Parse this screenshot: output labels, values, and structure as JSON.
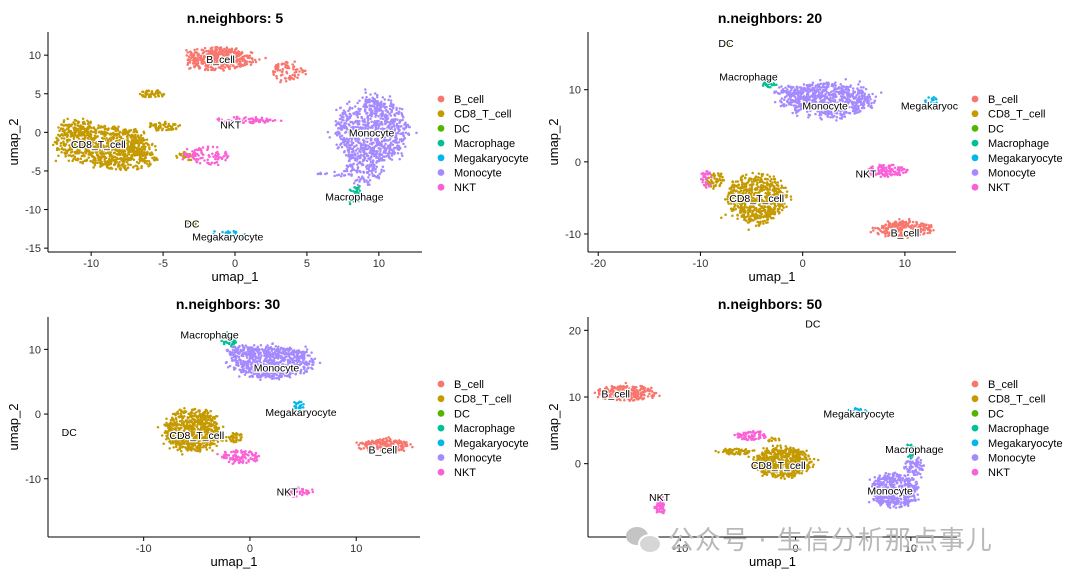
{
  "chart_data": [
    {
      "type": "scatter",
      "title": "n.neighbors: 5",
      "xlabel": "umap_1",
      "ylabel": "umap_2",
      "xlim": [
        -13,
        13
      ],
      "ylim": [
        -15.5,
        13
      ],
      "xticks": [
        -10,
        -5,
        0,
        5,
        10
      ],
      "yticks": [
        -15,
        -10,
        -5,
        0,
        5,
        10
      ],
      "legend": "right",
      "series": [
        {
          "name": "B_cell",
          "label": "B_cell",
          "label_pos": [
            -1,
            9.5
          ],
          "blobs": [
            [
              -1,
              9.5,
              2.6,
              1.5,
              1600
            ],
            [
              3.6,
              7.8,
              1.2,
              1.3,
              300
            ]
          ]
        },
        {
          "name": "CD8_T_cell",
          "label": "CD8_T_cell",
          "label_pos": [
            -9.5,
            -1.5
          ],
          "blobs": [
            [
              -9.3,
              -1.6,
              3.5,
              2.6,
              2600
            ],
            [
              -7.5,
              -3.3,
              2.2,
              1.8,
              900
            ],
            [
              -5,
              0.8,
              1.2,
              0.6,
              250
            ],
            [
              -5.8,
              5,
              1.0,
              0.5,
              200
            ],
            [
              -11,
              0.5,
              1.4,
              1.2,
              400
            ],
            [
              -3.4,
              -3.1,
              0.8,
              0.6,
              120
            ]
          ]
        },
        {
          "name": "DC",
          "label": "DC",
          "label_pos": [
            -3,
            -11.8
          ],
          "blobs": [
            [
              -3,
              -11.8,
              0.35,
              0.25,
              25
            ]
          ]
        },
        {
          "name": "Macrophage",
          "label": "Macrophage",
          "label_pos": [
            8.3,
            -8.3
          ],
          "blobs": [
            [
              8.4,
              -8.2,
              0.6,
              1.3,
              160
            ]
          ]
        },
        {
          "name": "Megakaryocyte",
          "label": "Megakaryocyte",
          "label_pos": [
            -0.5,
            -13.5
          ],
          "blobs": [
            [
              -0.5,
              -13.3,
              1.2,
              0.6,
              140
            ]
          ]
        },
        {
          "name": "Monocyte",
          "label": "Monocyte",
          "label_pos": [
            9.5,
            0
          ],
          "blobs": [
            [
              9.5,
              0.2,
              2.6,
              4.6,
              3200
            ],
            [
              9.0,
              -4.5,
              1.5,
              2.2,
              500
            ],
            [
              6.8,
              -5.5,
              1.2,
              0.4,
              60
            ]
          ]
        },
        {
          "name": "NKT",
          "label": "NKT",
          "label_pos": [
            -0.3,
            1
          ],
          "blobs": [
            [
              0.8,
              1.6,
              2.4,
              0.45,
              300
            ],
            [
              -2,
              -3,
              1.6,
              1.2,
              350
            ]
          ]
        }
      ]
    },
    {
      "type": "scatter",
      "title": "n.neighbors: 20",
      "xlabel": "umap_1",
      "ylabel": "umap_2",
      "xlim": [
        -21,
        15
      ],
      "ylim": [
        -12.5,
        18
      ],
      "xticks": [
        -20,
        -10,
        0,
        10
      ],
      "yticks": [
        -10,
        0,
        10
      ],
      "legend": "right",
      "series": [
        {
          "name": "B_cell",
          "label": "B_cell",
          "label_pos": [
            10,
            -9.8
          ],
          "blobs": [
            [
              10,
              -9.3,
              2.8,
              1.2,
              900
            ]
          ]
        },
        {
          "name": "CD8_T_cell",
          "label": "CD8_T_cell",
          "label_pos": [
            -4.5,
            -5
          ],
          "blobs": [
            [
              -4.5,
              -5.2,
              3.0,
              3.4,
              2600
            ],
            [
              -8.6,
              -2.6,
              1.0,
              1.2,
              200
            ]
          ]
        },
        {
          "name": "DC",
          "label": "DC",
          "label_pos": [
            -7.5,
            16.5
          ],
          "blobs": [
            [
              -7.5,
              16.5,
              0.4,
              0.25,
              25
            ]
          ]
        },
        {
          "name": "Macrophage",
          "label": "Macrophage",
          "label_pos": [
            -5.3,
            11.8
          ],
          "blobs": [
            [
              -3.2,
              11.2,
              0.8,
              1.2,
              150
            ]
          ]
        },
        {
          "name": "Megakaryocyte",
          "label": "Megakaryoc",
          "label_pos": [
            12.4,
            7.8
          ],
          "blobs": [
            [
              12.6,
              8.4,
              0.7,
              0.6,
              80
            ]
          ]
        },
        {
          "name": "Monocyte",
          "label": "Monocyte",
          "label_pos": [
            2.2,
            7.8
          ],
          "blobs": [
            [
              2.5,
              8.6,
              4.6,
              2.4,
              2800
            ],
            [
              -1.2,
              9.8,
              1.6,
              0.8,
              200
            ]
          ]
        },
        {
          "name": "NKT",
          "label": "NKT",
          "label_pos": [
            6.2,
            -1.6
          ],
          "blobs": [
            [
              8.2,
              -1.2,
              2.2,
              0.8,
              500
            ],
            [
              -9.4,
              -2.4,
              0.6,
              1.4,
              120
            ]
          ]
        }
      ]
    },
    {
      "type": "scatter",
      "title": "n.neighbors: 30",
      "xlabel": "umap_1",
      "ylabel": "umap_2",
      "xlim": [
        -19,
        16
      ],
      "ylim": [
        -19,
        15
      ],
      "xticks": [
        -10,
        0,
        10
      ],
      "yticks": [
        -10,
        0,
        10
      ],
      "legend": "right",
      "series": [
        {
          "name": "B_cell",
          "label": "B_cell",
          "label_pos": [
            12.5,
            -5.5
          ],
          "blobs": [
            [
              12.6,
              -4.9,
              2.6,
              1.1,
              800
            ]
          ]
        },
        {
          "name": "CD8_T_cell",
          "label": "CD8_T_cell",
          "label_pos": [
            -5,
            -3.2
          ],
          "blobs": [
            [
              -5.5,
              -2.5,
              2.7,
              3.4,
              2600
            ],
            [
              -1.6,
              -3.6,
              1.0,
              0.8,
              150
            ]
          ]
        },
        {
          "name": "DC",
          "label": "DC",
          "label_pos": [
            -17,
            -2.8
          ],
          "blobs": [
            [
              -17.2,
              -2.8,
              0.4,
              0.3,
              25
            ]
          ]
        },
        {
          "name": "Macrophage",
          "label": "Macrophage",
          "label_pos": [
            -3.8,
            12.3
          ],
          "blobs": [
            [
              -2,
              11.5,
              0.8,
              1.3,
              150
            ]
          ]
        },
        {
          "name": "Megakaryocyte",
          "label": "Megakaryocyte",
          "label_pos": [
            4.8,
            0.3
          ],
          "blobs": [
            [
              4.6,
              1.2,
              0.6,
              0.8,
              90
            ]
          ]
        },
        {
          "name": "Monocyte",
          "label": "Monocyte",
          "label_pos": [
            2.5,
            7.2
          ],
          "blobs": [
            [
              2.2,
              8,
              4.0,
              2.6,
              2800
            ],
            [
              -1.0,
              9.8,
              1.4,
              0.9,
              250
            ]
          ]
        },
        {
          "name": "NKT",
          "label": "NKT",
          "label_pos": [
            3.5,
            -12
          ],
          "blobs": [
            [
              4.2,
              -12,
              1.6,
              0.7,
              280
            ],
            [
              -1,
              -6.6,
              2.0,
              1.0,
              380
            ]
          ]
        }
      ]
    },
    {
      "type": "scatter",
      "title": "n.neighbors: 50",
      "xlabel": "umap_1",
      "ylabel": "umap_2",
      "xlim": [
        -18,
        14
      ],
      "ylim": [
        -11,
        22
      ],
      "xticks": [
        -10,
        0,
        10
      ],
      "yticks": [
        0,
        10,
        20
      ],
      "legend": "right",
      "series": [
        {
          "name": "B_cell",
          "label": "B_cell",
          "label_pos": [
            -15.6,
            10.5
          ],
          "blobs": [
            [
              -14.6,
              10.6,
              2.7,
              1.2,
              900
            ]
          ]
        },
        {
          "name": "CD8_T_cell",
          "label": "CD8_T_cell",
          "label_pos": [
            -1.5,
            -0.2
          ],
          "blobs": [
            [
              -1.2,
              0.2,
              2.6,
              2.3,
              2300
            ],
            [
              -5.2,
              1.8,
              1.4,
              0.5,
              250
            ],
            [
              -2.0,
              3.6,
              0.6,
              0.4,
              40
            ]
          ]
        },
        {
          "name": "DC",
          "label": "DC",
          "label_pos": [
            1.5,
            21
          ],
          "blobs": [
            [
              1.5,
              21,
              0.4,
              0.25,
              25
            ]
          ]
        },
        {
          "name": "Macrophage",
          "label": "Macrophage",
          "label_pos": [
            10.3,
            2.2
          ],
          "blobs": [
            [
              10.0,
              2,
              0.5,
              1.2,
              120
            ]
          ]
        },
        {
          "name": "Megakaryocyte",
          "label": "Megakaryocyte",
          "label_pos": [
            5.5,
            7.5
          ],
          "blobs": [
            [
              5.6,
              7.9,
              0.9,
              0.5,
              90
            ]
          ]
        },
        {
          "name": "Monocyte",
          "label": "Monocyte",
          "label_pos": [
            8.2,
            -4
          ],
          "blobs": [
            [
              8.6,
              -4,
              2.2,
              2.6,
              1800
            ],
            [
              10.3,
              -0.6,
              0.9,
              1.6,
              300
            ]
          ]
        },
        {
          "name": "NKT",
          "label": "NKT",
          "label_pos": [
            -11.8,
            -5
          ],
          "blobs": [
            [
              -11.8,
              -6.2,
              0.5,
              1.6,
              220
            ],
            [
              -3.8,
              4.2,
              1.4,
              0.7,
              300
            ]
          ]
        }
      ]
    }
  ],
  "legend": {
    "items": [
      "B_cell",
      "CD8_T_cell",
      "DC",
      "Macrophage",
      "Megakaryocyte",
      "Monocyte",
      "NKT"
    ],
    "colors": {
      "B_cell": "#F8766D",
      "CD8_T_cell": "#C49A00",
      "DC": "#53B400",
      "Macrophage": "#00C094",
      "Megakaryocyte": "#00B6EB",
      "Monocyte": "#A58AFF",
      "NKT": "#FB61D7"
    }
  },
  "watermark": {
    "text": "公众号 · 生信分析那点事儿",
    "icon": "wechat-icon"
  }
}
